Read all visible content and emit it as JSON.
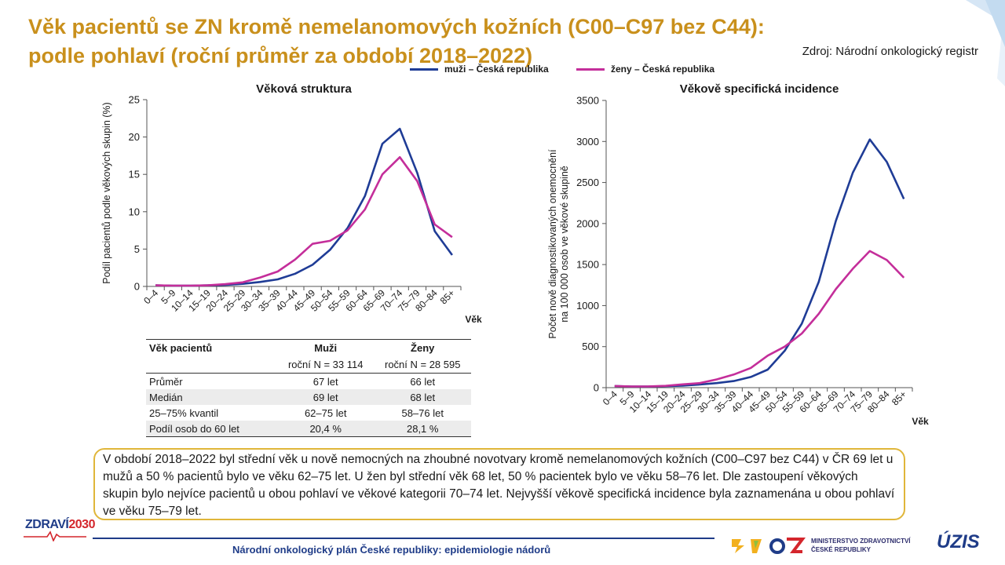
{
  "title": "Věk pacientů se ZN kromě nemelanomových kožních (C00–C97 bez C44): podle pohlaví (roční průměr za období 2018–2022)",
  "source": "Zdroj: Národní onkologický registr",
  "legend": [
    {
      "label": "muži – Česká republika",
      "color": "#1f3c96"
    },
    {
      "label": "ženy – Česká republika",
      "color": "#c42e9a"
    }
  ],
  "chart_data": [
    {
      "type": "line",
      "title": "Věková struktura",
      "xlabel": "Věk",
      "ylabel": "Podíl pacientů podle věkových skupin (%)",
      "ylim": [
        0,
        25
      ],
      "yticks": [
        0,
        5,
        10,
        15,
        20,
        25
      ],
      "categories": [
        "0–4",
        "5–9",
        "10–14",
        "15–19",
        "20–24",
        "25–29",
        "30–34",
        "35–39",
        "40–44",
        "45–49",
        "50–54",
        "55–59",
        "60–64",
        "65–69",
        "70–74",
        "75–79",
        "80–84",
        "85+"
      ],
      "series": [
        {
          "name": "muži – Česká republika",
          "color": "#1f3c96",
          "values": [
            0.15,
            0.1,
            0.1,
            0.15,
            0.2,
            0.35,
            0.6,
            0.95,
            1.7,
            2.9,
            4.9,
            7.8,
            12.1,
            19.1,
            21.1,
            15.2,
            7.4,
            4.2
          ]
        },
        {
          "name": "ženy – Česká republika",
          "color": "#c42e9a",
          "values": [
            0.15,
            0.1,
            0.1,
            0.15,
            0.3,
            0.55,
            1.2,
            2.0,
            3.6,
            5.7,
            6.1,
            7.5,
            10.3,
            15.0,
            17.3,
            14.1,
            8.3,
            6.6
          ]
        }
      ]
    },
    {
      "type": "line",
      "title": "Věkově specifická incidence",
      "xlabel": "Věk",
      "ylabel": [
        "Počet nově diagnostikovaných onemocnění",
        "na 100 000 osob ve věkové skupině"
      ],
      "ylim": [
        0,
        3500
      ],
      "yticks": [
        0,
        500,
        1000,
        1500,
        2000,
        2500,
        3000,
        3500
      ],
      "categories": [
        "0–4",
        "5–9",
        "10–14",
        "15–19",
        "20–24",
        "25–29",
        "30–34",
        "35–39",
        "40–44",
        "45–49",
        "50–54",
        "55–59",
        "60–64",
        "65–69",
        "70–74",
        "75–79",
        "80–84",
        "85+"
      ],
      "series": [
        {
          "name": "muži – Česká republika",
          "color": "#1f3c96",
          "values": [
            20,
            14,
            13,
            18,
            25,
            38,
            55,
            80,
            130,
            220,
            450,
            780,
            1290,
            2030,
            2620,
            3025,
            2750,
            2300
          ]
        },
        {
          "name": "ženy – Česká republika",
          "color": "#c42e9a",
          "values": [
            20,
            14,
            15,
            22,
            40,
            55,
            100,
            160,
            240,
            390,
            500,
            660,
            900,
            1200,
            1450,
            1665,
            1555,
            1340
          ]
        }
      ]
    }
  ],
  "stats_table": {
    "headers": [
      "Věk pacientů",
      "Muži",
      "Ženy"
    ],
    "subheaders": [
      "",
      "roční N = 33 114",
      "roční N = 28 595"
    ],
    "rows": [
      [
        "Průměr",
        "67 let",
        "66 let"
      ],
      [
        "Medián",
        "69 let",
        "68 let"
      ],
      [
        "25–75% kvantil",
        "62–75 let",
        "58–76 let"
      ],
      [
        "Podíl osob do 60 let",
        "20,4 %",
        "28,1 %"
      ]
    ]
  },
  "note": "V období 2018–2022 byl střední věk u nově nemocných na zhoubné novotvary kromě nemelanomových kožních (C00–C97 bez C44) v ČR 69 let u mužů a 50 % pacientů bylo ve věku 62–75 let. U žen byl střední věk 68 let, 50 % pacientek bylo ve věku 58–76 let. Dle zastoupení věkových skupin bylo nejvíce pacientů u obou pohlaví ve věkové kategorii 70–74 let. Nejvyšší věkově specifická incidence byla zaznamenána u obou pohlaví ve věku 75–79 let.",
  "footer": {
    "text": "Národní onkologický plán České republiky: epidemiologie nádorů",
    "logo_left_a": "ZDRAVÍ",
    "logo_left_b": "2030",
    "ministry": [
      "MINISTERSTVO ZDRAVOTNICTVÍ",
      "ČESKÉ REPUBLIKY"
    ],
    "logo_right": "ÚZIS"
  }
}
